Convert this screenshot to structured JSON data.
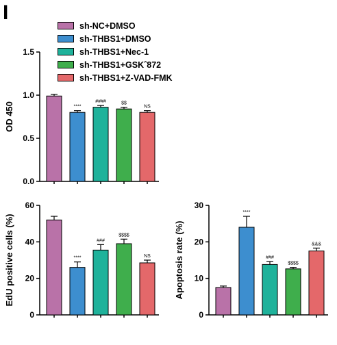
{
  "panel_label": "I",
  "legend": [
    {
      "label": "sh-NC+DMSO",
      "color": "#b972a8"
    },
    {
      "label": "sh-THBS1+DMSO",
      "color": "#3d8ecf"
    },
    {
      "label": "sh-THBS1+Nec-1",
      "color": "#1fb29b"
    },
    {
      "label": "sh-THBS1+GSKˆ872",
      "color": "#3fae4c"
    },
    {
      "label": "sh-THBS1+Z-VAD-FMK",
      "color": "#e4686a"
    }
  ],
  "chart_data": [
    {
      "type": "bar",
      "title": "",
      "xlabel": "",
      "ylabel": "OD 450",
      "categories": [
        "sh-NC+DMSO",
        "sh-THBS1+DMSO",
        "sh-THBS1+Nec-1",
        "sh-THBS1+GSKˆ872",
        "sh-THBS1+Z-VAD-FMK"
      ],
      "values": [
        0.99,
        0.8,
        0.86,
        0.84,
        0.8
      ],
      "errors": [
        0.02,
        0.02,
        0.02,
        0.02,
        0.02
      ],
      "annotations": [
        "",
        "****",
        "####",
        "$$",
        "NS"
      ],
      "ylim": [
        0,
        1.5
      ],
      "yticks": [
        0.0,
        0.5,
        1.0,
        1.5
      ],
      "ytick_labels": [
        "0.0",
        "0.5",
        "1.0",
        "1.5"
      ],
      "grid": false
    },
    {
      "type": "bar",
      "title": "",
      "xlabel": "",
      "ylabel": "EdU positive cells (%)",
      "categories": [
        "sh-NC+DMSO",
        "sh-THBS1+DMSO",
        "sh-THBS1+Nec-1",
        "sh-THBS1+GSKˆ872",
        "sh-THBS1+Z-VAD-FMK"
      ],
      "values": [
        52,
        26,
        35.5,
        39,
        28.5
      ],
      "errors": [
        2,
        3,
        3,
        2.5,
        1.5
      ],
      "annotations": [
        "",
        "****",
        "###",
        "$$$$",
        "NS"
      ],
      "ylim": [
        0,
        60
      ],
      "yticks": [
        0,
        20,
        40,
        60
      ],
      "ytick_labels": [
        "0",
        "20",
        "40",
        "60"
      ],
      "grid": false
    },
    {
      "type": "bar",
      "title": "",
      "xlabel": "",
      "ylabel": "Apoptosis rate (%)",
      "categories": [
        "sh-NC+DMSO",
        "sh-THBS1+DMSO",
        "sh-THBS1+Nec-1",
        "sh-THBS1+GSKˆ872",
        "sh-THBS1+Z-VAD-FMK"
      ],
      "values": [
        7.5,
        24,
        13.8,
        12.6,
        17.5
      ],
      "errors": [
        0.4,
        3,
        0.8,
        0.4,
        0.8
      ],
      "annotations": [
        "",
        "****",
        "###",
        "$$$$",
        "&&&"
      ],
      "ylim": [
        0,
        30
      ],
      "yticks": [
        0,
        10,
        20,
        30
      ],
      "ytick_labels": [
        "0",
        "10",
        "20",
        "30"
      ],
      "grid": false
    }
  ]
}
